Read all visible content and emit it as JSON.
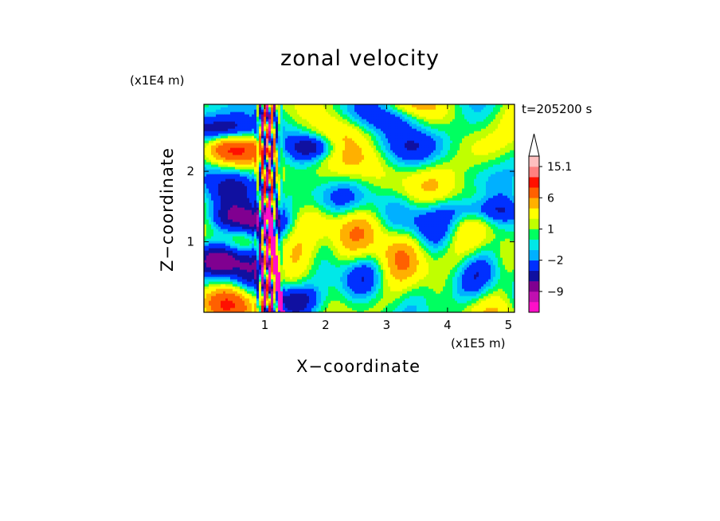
{
  "chart_data": {
    "type": "heatmap",
    "title": "zonal velocity",
    "xlabel": "X−coordinate",
    "ylabel": "Z−coordinate",
    "x_unit": "(x1E5 m)",
    "y_unit": "(x1E4 m)",
    "time_label": "t=205200 s",
    "xlim": [
      0,
      5.1
    ],
    "ylim": [
      0,
      2.95
    ],
    "x_ticks": [
      {
        "value": 1,
        "label": "1"
      },
      {
        "value": 2,
        "label": "2"
      },
      {
        "value": 3,
        "label": "3"
      },
      {
        "value": 4,
        "label": "4"
      },
      {
        "value": 5,
        "label": "5"
      }
    ],
    "y_ticks": [
      {
        "value": 1,
        "label": "1"
      },
      {
        "value": 2,
        "label": "2"
      }
    ],
    "colorbar": {
      "levels": [
        -15,
        -12,
        -9,
        -6,
        -4,
        -2,
        -1,
        0,
        1,
        2,
        4,
        6,
        9,
        12,
        15.1
      ],
      "colors": [
        "#ff10c8",
        "#c010b0",
        "#800090",
        "#1010a0",
        "#0030ff",
        "#00b0ff",
        "#00e8e8",
        "#00ff60",
        "#c0ff00",
        "#ffff00",
        "#ffb000",
        "#ff6000",
        "#ff1000",
        "#ff8080",
        "#ffc0c0"
      ],
      "labels": [
        {
          "value": 15.1,
          "label": "15.1"
        },
        {
          "value": 6,
          "label": "6"
        },
        {
          "value": 1,
          "label": "1"
        },
        {
          "value": -2,
          "label": "−2"
        },
        {
          "value": -9,
          "label": "−9"
        }
      ],
      "extend_max": true
    }
  }
}
